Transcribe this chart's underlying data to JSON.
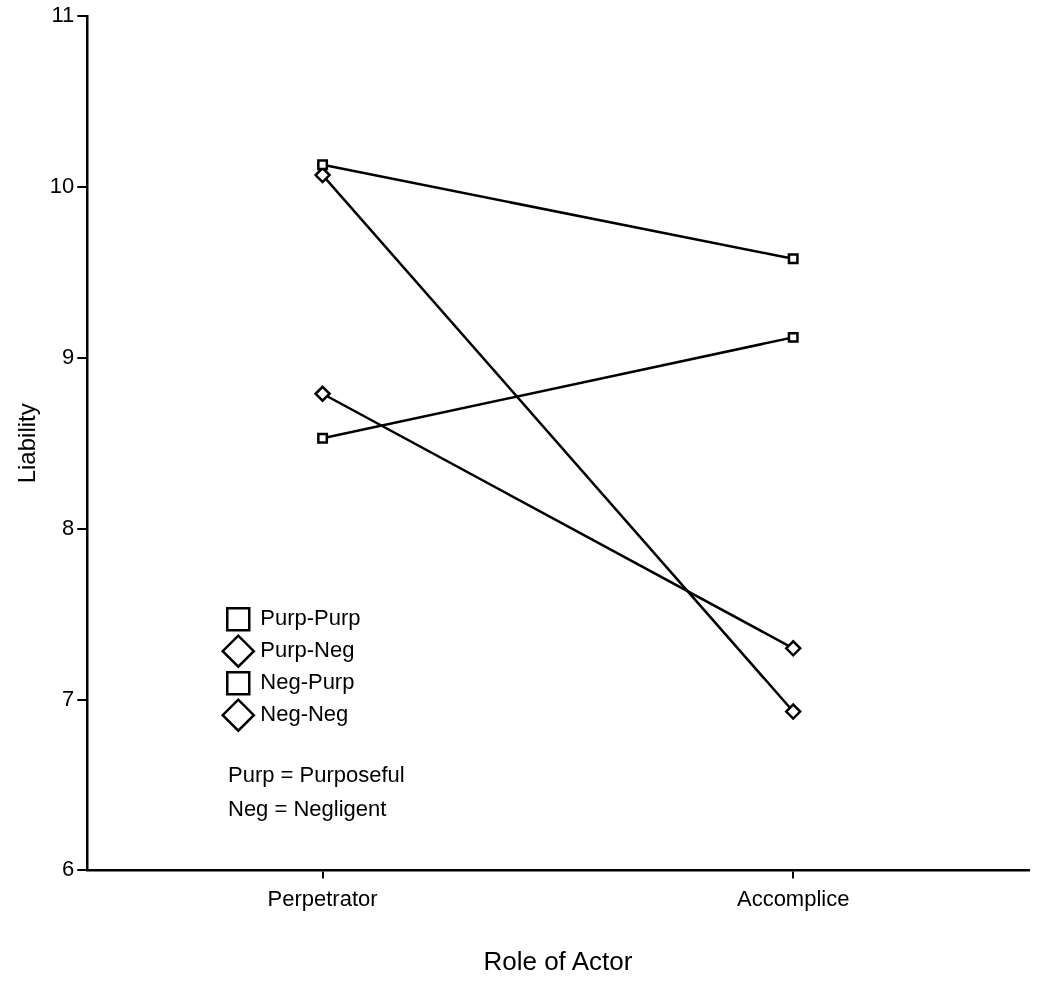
{
  "chart_data": {
    "type": "line",
    "xlabel": "Role of Actor",
    "ylabel": "Liability",
    "categories": [
      "Perpetrator",
      "Accomplice"
    ],
    "series": [
      {
        "name": "Purp-Purp",
        "color": "#000000",
        "marker": "square",
        "values": [
          10.13,
          9.58
        ]
      },
      {
        "name": "Purp-Neg",
        "color": "#000000",
        "marker": "diamond",
        "values": [
          10.07,
          6.93
        ]
      },
      {
        "name": "Neg-Purp",
        "color": "#000000",
        "marker": "square",
        "values": [
          8.53,
          9.12
        ]
      },
      {
        "name": "Neg-Neg",
        "color": "#000000",
        "marker": "diamond",
        "values": [
          8.79,
          7.3
        ]
      }
    ],
    "ylim": [
      6,
      11
    ],
    "yticks": [
      6,
      7,
      8,
      9,
      10,
      11
    ],
    "grid": false,
    "legend": "bottom left",
    "annotations": [
      "Purp = Purposeful",
      "Neg = Negligent"
    ]
  }
}
